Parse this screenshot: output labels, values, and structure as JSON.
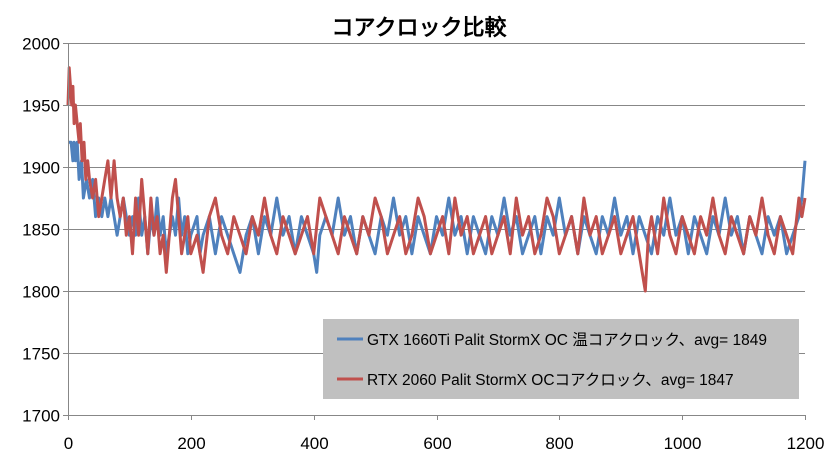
{
  "chart_data": {
    "type": "line",
    "title": "コアクロック比較",
    "xlabel": "",
    "ylabel": "",
    "xlim": [
      0,
      1200
    ],
    "ylim": [
      1700,
      2000
    ],
    "xticks": [
      0,
      200,
      400,
      600,
      800,
      1000,
      1200
    ],
    "yticks": [
      1700,
      1750,
      1800,
      1850,
      1900,
      1950,
      2000
    ],
    "grid": "horizontal",
    "legend_position": "bottom-right",
    "legend_background": "#c0c0c0",
    "series": [
      {
        "name": "GTX 1660Ti Palit StormX OC 温コアクロック、avg= 1849",
        "color": "#4f81bd",
        "points": [
          [
            0,
            1920
          ],
          [
            5,
            1920
          ],
          [
            8,
            1905
          ],
          [
            10,
            1920
          ],
          [
            12,
            1905
          ],
          [
            15,
            1920
          ],
          [
            18,
            1890
          ],
          [
            22,
            1905
          ],
          [
            25,
            1875
          ],
          [
            30,
            1890
          ],
          [
            35,
            1875
          ],
          [
            40,
            1890
          ],
          [
            45,
            1860
          ],
          [
            50,
            1875
          ],
          [
            55,
            1860
          ],
          [
            60,
            1875
          ],
          [
            65,
            1860
          ],
          [
            70,
            1875
          ],
          [
            75,
            1860
          ],
          [
            80,
            1845
          ],
          [
            85,
            1860
          ],
          [
            90,
            1875
          ],
          [
            95,
            1860
          ],
          [
            100,
            1845
          ],
          [
            105,
            1860
          ],
          [
            110,
            1845
          ],
          [
            115,
            1875
          ],
          [
            120,
            1845
          ],
          [
            125,
            1860
          ],
          [
            130,
            1830
          ],
          [
            135,
            1860
          ],
          [
            140,
            1845
          ],
          [
            145,
            1875
          ],
          [
            150,
            1845
          ],
          [
            155,
            1860
          ],
          [
            160,
            1830
          ],
          [
            165,
            1845
          ],
          [
            170,
            1860
          ],
          [
            175,
            1845
          ],
          [
            180,
            1875
          ],
          [
            185,
            1845
          ],
          [
            190,
            1860
          ],
          [
            195,
            1830
          ],
          [
            200,
            1845
          ],
          [
            210,
            1860
          ],
          [
            215,
            1830
          ],
          [
            220,
            1845
          ],
          [
            230,
            1860
          ],
          [
            240,
            1830
          ],
          [
            250,
            1860
          ],
          [
            260,
            1845
          ],
          [
            270,
            1830
          ],
          [
            280,
            1815
          ],
          [
            290,
            1845
          ],
          [
            300,
            1860
          ],
          [
            310,
            1830
          ],
          [
            320,
            1860
          ],
          [
            330,
            1845
          ],
          [
            340,
            1875
          ],
          [
            350,
            1845
          ],
          [
            360,
            1860
          ],
          [
            370,
            1830
          ],
          [
            380,
            1860
          ],
          [
            390,
            1845
          ],
          [
            400,
            1830
          ],
          [
            405,
            1815
          ],
          [
            410,
            1845
          ],
          [
            420,
            1860
          ],
          [
            430,
            1845
          ],
          [
            440,
            1875
          ],
          [
            450,
            1845
          ],
          [
            460,
            1860
          ],
          [
            470,
            1830
          ],
          [
            480,
            1860
          ],
          [
            490,
            1845
          ],
          [
            500,
            1830
          ],
          [
            510,
            1860
          ],
          [
            520,
            1845
          ],
          [
            530,
            1875
          ],
          [
            540,
            1845
          ],
          [
            550,
            1860
          ],
          [
            560,
            1830
          ],
          [
            570,
            1860
          ],
          [
            580,
            1845
          ],
          [
            590,
            1830
          ],
          [
            600,
            1860
          ],
          [
            610,
            1845
          ],
          [
            620,
            1875
          ],
          [
            630,
            1845
          ],
          [
            640,
            1860
          ],
          [
            650,
            1830
          ],
          [
            660,
            1860
          ],
          [
            670,
            1845
          ],
          [
            680,
            1830
          ],
          [
            690,
            1860
          ],
          [
            700,
            1845
          ],
          [
            710,
            1875
          ],
          [
            720,
            1845
          ],
          [
            730,
            1860
          ],
          [
            740,
            1830
          ],
          [
            750,
            1845
          ],
          [
            760,
            1860
          ],
          [
            770,
            1830
          ],
          [
            780,
            1860
          ],
          [
            790,
            1845
          ],
          [
            800,
            1875
          ],
          [
            810,
            1845
          ],
          [
            820,
            1860
          ],
          [
            830,
            1830
          ],
          [
            840,
            1860
          ],
          [
            850,
            1845
          ],
          [
            860,
            1830
          ],
          [
            870,
            1860
          ],
          [
            880,
            1845
          ],
          [
            890,
            1875
          ],
          [
            900,
            1845
          ],
          [
            910,
            1860
          ],
          [
            920,
            1830
          ],
          [
            930,
            1860
          ],
          [
            940,
            1845
          ],
          [
            950,
            1830
          ],
          [
            960,
            1860
          ],
          [
            970,
            1845
          ],
          [
            980,
            1875
          ],
          [
            990,
            1845
          ],
          [
            1000,
            1860
          ],
          [
            1010,
            1830
          ],
          [
            1020,
            1860
          ],
          [
            1030,
            1845
          ],
          [
            1040,
            1830
          ],
          [
            1050,
            1860
          ],
          [
            1060,
            1845
          ],
          [
            1070,
            1875
          ],
          [
            1080,
            1845
          ],
          [
            1090,
            1860
          ],
          [
            1100,
            1830
          ],
          [
            1110,
            1860
          ],
          [
            1120,
            1845
          ],
          [
            1130,
            1830
          ],
          [
            1140,
            1860
          ],
          [
            1150,
            1845
          ],
          [
            1160,
            1860
          ],
          [
            1170,
            1830
          ],
          [
            1180,
            1845
          ],
          [
            1190,
            1860
          ],
          [
            1195,
            1875
          ],
          [
            1200,
            1905
          ]
        ]
      },
      {
        "name": "RTX 2060 Palit StormX OCコアクロック、avg= 1847",
        "color": "#c0504d",
        "points": [
          [
            0,
            1950
          ],
          [
            2,
            1980
          ],
          [
            4,
            1965
          ],
          [
            6,
            1950
          ],
          [
            8,
            1965
          ],
          [
            10,
            1935
          ],
          [
            12,
            1950
          ],
          [
            15,
            1935
          ],
          [
            18,
            1920
          ],
          [
            20,
            1935
          ],
          [
            23,
            1905
          ],
          [
            26,
            1920
          ],
          [
            29,
            1890
          ],
          [
            32,
            1905
          ],
          [
            35,
            1890
          ],
          [
            40,
            1875
          ],
          [
            45,
            1890
          ],
          [
            50,
            1860
          ],
          [
            55,
            1875
          ],
          [
            60,
            1890
          ],
          [
            65,
            1905
          ],
          [
            70,
            1875
          ],
          [
            75,
            1905
          ],
          [
            80,
            1875
          ],
          [
            85,
            1860
          ],
          [
            90,
            1875
          ],
          [
            95,
            1845
          ],
          [
            100,
            1860
          ],
          [
            105,
            1830
          ],
          [
            110,
            1875
          ],
          [
            115,
            1845
          ],
          [
            120,
            1890
          ],
          [
            125,
            1860
          ],
          [
            130,
            1830
          ],
          [
            135,
            1875
          ],
          [
            140,
            1845
          ],
          [
            145,
            1860
          ],
          [
            150,
            1830
          ],
          [
            155,
            1845
          ],
          [
            160,
            1815
          ],
          [
            165,
            1845
          ],
          [
            170,
            1875
          ],
          [
            175,
            1890
          ],
          [
            180,
            1860
          ],
          [
            185,
            1830
          ],
          [
            190,
            1845
          ],
          [
            195,
            1860
          ],
          [
            200,
            1830
          ],
          [
            210,
            1845
          ],
          [
            220,
            1815
          ],
          [
            230,
            1860
          ],
          [
            240,
            1875
          ],
          [
            250,
            1845
          ],
          [
            260,
            1830
          ],
          [
            270,
            1860
          ],
          [
            280,
            1845
          ],
          [
            290,
            1830
          ],
          [
            300,
            1860
          ],
          [
            310,
            1845
          ],
          [
            320,
            1875
          ],
          [
            330,
            1845
          ],
          [
            340,
            1830
          ],
          [
            350,
            1860
          ],
          [
            360,
            1845
          ],
          [
            370,
            1830
          ],
          [
            380,
            1845
          ],
          [
            390,
            1860
          ],
          [
            400,
            1830
          ],
          [
            410,
            1875
          ],
          [
            420,
            1860
          ],
          [
            430,
            1845
          ],
          [
            440,
            1830
          ],
          [
            450,
            1860
          ],
          [
            460,
            1845
          ],
          [
            470,
            1830
          ],
          [
            480,
            1860
          ],
          [
            490,
            1845
          ],
          [
            500,
            1875
          ],
          [
            510,
            1860
          ],
          [
            520,
            1830
          ],
          [
            530,
            1845
          ],
          [
            540,
            1860
          ],
          [
            550,
            1830
          ],
          [
            560,
            1845
          ],
          [
            570,
            1875
          ],
          [
            580,
            1860
          ],
          [
            590,
            1830
          ],
          [
            600,
            1845
          ],
          [
            610,
            1860
          ],
          [
            620,
            1830
          ],
          [
            630,
            1875
          ],
          [
            640,
            1845
          ],
          [
            650,
            1860
          ],
          [
            660,
            1830
          ],
          [
            670,
            1845
          ],
          [
            680,
            1860
          ],
          [
            690,
            1830
          ],
          [
            700,
            1845
          ],
          [
            710,
            1860
          ],
          [
            720,
            1830
          ],
          [
            730,
            1875
          ],
          [
            740,
            1845
          ],
          [
            750,
            1860
          ],
          [
            760,
            1830
          ],
          [
            770,
            1845
          ],
          [
            780,
            1875
          ],
          [
            790,
            1860
          ],
          [
            800,
            1830
          ],
          [
            810,
            1845
          ],
          [
            820,
            1860
          ],
          [
            830,
            1830
          ],
          [
            840,
            1875
          ],
          [
            850,
            1845
          ],
          [
            860,
            1860
          ],
          [
            870,
            1830
          ],
          [
            880,
            1845
          ],
          [
            890,
            1860
          ],
          [
            900,
            1830
          ],
          [
            910,
            1845
          ],
          [
            920,
            1860
          ],
          [
            930,
            1830
          ],
          [
            935,
            1815
          ],
          [
            940,
            1800
          ],
          [
            945,
            1845
          ],
          [
            950,
            1860
          ],
          [
            960,
            1830
          ],
          [
            970,
            1875
          ],
          [
            980,
            1845
          ],
          [
            990,
            1830
          ],
          [
            1000,
            1860
          ],
          [
            1010,
            1845
          ],
          [
            1020,
            1830
          ],
          [
            1030,
            1860
          ],
          [
            1040,
            1845
          ],
          [
            1050,
            1875
          ],
          [
            1060,
            1845
          ],
          [
            1070,
            1830
          ],
          [
            1080,
            1860
          ],
          [
            1090,
            1845
          ],
          [
            1100,
            1830
          ],
          [
            1110,
            1860
          ],
          [
            1120,
            1845
          ],
          [
            1130,
            1875
          ],
          [
            1140,
            1845
          ],
          [
            1150,
            1830
          ],
          [
            1160,
            1860
          ],
          [
            1170,
            1845
          ],
          [
            1180,
            1830
          ],
          [
            1190,
            1875
          ],
          [
            1195,
            1860
          ],
          [
            1200,
            1875
          ]
        ]
      }
    ]
  }
}
